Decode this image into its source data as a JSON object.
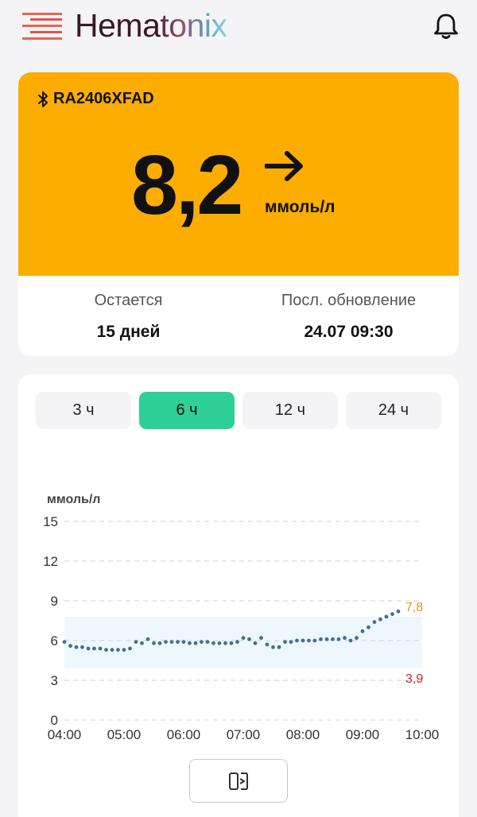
{
  "header": {
    "logo_prefix": "Hema",
    "logo_suffix": "tonix",
    "logo_icon": "menu-lines-icon",
    "bell_icon": "bell-icon"
  },
  "sensor": {
    "device_icon": "bluetooth-icon",
    "device_id": "RA2406XFAD",
    "value": "8,2",
    "trend_icon": "arrow-right-icon",
    "unit": "ммоль/л",
    "remaining_label": "Остается",
    "remaining_value": "15 дней",
    "updated_label": "Посл. обновление",
    "updated_value": "24.07 09:30",
    "accent_color": "#fcad00"
  },
  "range_tabs": [
    {
      "label": "3 ч",
      "active": false
    },
    {
      "label": "6 ч",
      "active": true
    },
    {
      "label": "12 ч",
      "active": false
    },
    {
      "label": "24 ч",
      "active": false
    }
  ],
  "chart_data": {
    "type": "scatter",
    "ylabel": "ммоль/л",
    "ylim": [
      0,
      15
    ],
    "yticks": [
      "0",
      "3",
      "6",
      "9",
      "12",
      "15"
    ],
    "xticks": [
      "04:00",
      "05:00",
      "06:00",
      "07:00",
      "08:00",
      "09:00",
      "10:00"
    ],
    "x_range_hours": [
      4,
      10
    ],
    "target_range": {
      "low": 3.9,
      "high": 7.8,
      "low_label": "3,9",
      "high_label": "7,8"
    },
    "grid": true,
    "points": [
      [
        4.0,
        5.9
      ],
      [
        4.1,
        5.6
      ],
      [
        4.2,
        5.5
      ],
      [
        4.3,
        5.5
      ],
      [
        4.4,
        5.4
      ],
      [
        4.5,
        5.4
      ],
      [
        4.6,
        5.4
      ],
      [
        4.7,
        5.3
      ],
      [
        4.8,
        5.3
      ],
      [
        4.9,
        5.3
      ],
      [
        5.0,
        5.3
      ],
      [
        5.1,
        5.4
      ],
      [
        5.2,
        5.9
      ],
      [
        5.3,
        5.8
      ],
      [
        5.4,
        6.1
      ],
      [
        5.5,
        5.8
      ],
      [
        5.6,
        5.8
      ],
      [
        5.7,
        5.9
      ],
      [
        5.8,
        5.9
      ],
      [
        5.9,
        5.9
      ],
      [
        6.0,
        5.9
      ],
      [
        6.1,
        5.8
      ],
      [
        6.2,
        5.8
      ],
      [
        6.3,
        5.9
      ],
      [
        6.4,
        5.9
      ],
      [
        6.5,
        5.8
      ],
      [
        6.6,
        5.8
      ],
      [
        6.7,
        5.8
      ],
      [
        6.8,
        5.8
      ],
      [
        6.9,
        5.9
      ],
      [
        7.0,
        6.2
      ],
      [
        7.1,
        6.1
      ],
      [
        7.2,
        5.8
      ],
      [
        7.3,
        6.2
      ],
      [
        7.4,
        5.7
      ],
      [
        7.5,
        5.5
      ],
      [
        7.6,
        5.5
      ],
      [
        7.7,
        5.9
      ],
      [
        7.8,
        5.9
      ],
      [
        7.9,
        6.0
      ],
      [
        8.0,
        6.0
      ],
      [
        8.1,
        6.0
      ],
      [
        8.2,
        6.0
      ],
      [
        8.3,
        6.1
      ],
      [
        8.4,
        6.1
      ],
      [
        8.5,
        6.1
      ],
      [
        8.6,
        6.1
      ],
      [
        8.7,
        6.2
      ],
      [
        8.8,
        6.0
      ],
      [
        8.9,
        6.2
      ],
      [
        9.0,
        6.7
      ],
      [
        9.1,
        7.0
      ],
      [
        9.2,
        7.4
      ],
      [
        9.3,
        7.6
      ],
      [
        9.4,
        7.8
      ],
      [
        9.5,
        8.0
      ],
      [
        9.6,
        8.2
      ]
    ],
    "point_color": "#476e8f",
    "band_color": "#eef7fd",
    "high_color": "#e0961c",
    "low_color": "#c0282d"
  },
  "action": {
    "icon": "view-toggle-icon"
  }
}
